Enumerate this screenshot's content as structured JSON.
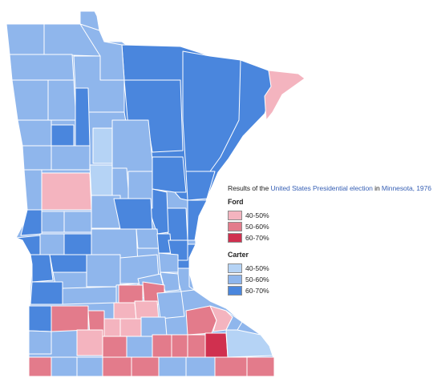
{
  "legend": {
    "caption_prefix": "Results of the ",
    "caption_link_1": "United States Presidential election",
    "caption_mid": " in ",
    "caption_link_2": "Minnesota, 1976",
    "ford": {
      "title": "Ford",
      "items": [
        {
          "label": "40-50%",
          "color": "#f4b4bf"
        },
        {
          "label": "50-60%",
          "color": "#e37b8b"
        },
        {
          "label": "60-70%",
          "color": "#d0304f"
        }
      ]
    },
    "carter": {
      "title": "Carter",
      "items": [
        {
          "label": "40-50%",
          "color": "#b5d3f5"
        },
        {
          "label": "50-60%",
          "color": "#8fb6ec"
        },
        {
          "label": "60-70%",
          "color": "#4a86dd"
        }
      ]
    }
  },
  "colors": {
    "base_fill": "#8fb6ec",
    "county_border": "#ffffff",
    "link_text": "#3b63b6"
  }
}
